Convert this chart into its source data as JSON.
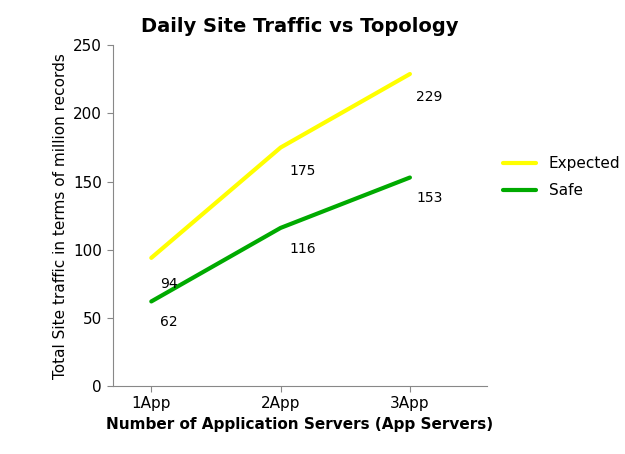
{
  "title": "Daily Site Traffic vs Topology",
  "xlabel": "Number of Application Servers (App Servers)",
  "ylabel": "Total Site traffic in terms of million records",
  "x_labels": [
    "1App",
    "2App",
    "3App"
  ],
  "x_values": [
    1,
    2,
    3
  ],
  "expected_values": [
    94,
    175,
    229
  ],
  "safe_values": [
    62,
    116,
    153
  ],
  "expected_color": "#FFFF00",
  "safe_color": "#00AA00",
  "expected_label": "Expected",
  "safe_label": "Safe",
  "ylim": [
    0,
    250
  ],
  "yticks": [
    0,
    50,
    100,
    150,
    200,
    250
  ],
  "line_width": 3.0,
  "title_fontsize": 14,
  "label_fontsize": 11,
  "tick_fontsize": 11,
  "annotation_fontsize": 10,
  "background_color": "#ffffff"
}
